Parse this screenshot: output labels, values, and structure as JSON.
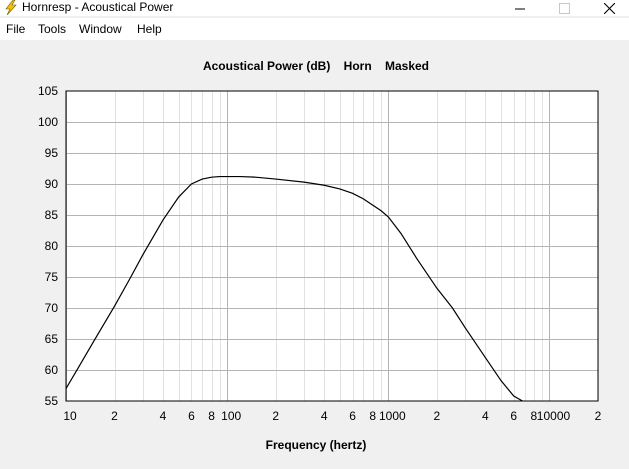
{
  "window": {
    "title": "Hornresp - Acoustical Power"
  },
  "menu": {
    "file": "File",
    "tools": "Tools",
    "window": "Window",
    "help": "Help"
  },
  "icons": {
    "app": "lightning-bolt-icon",
    "minimize": "minimize-icon",
    "maximize": "maximize-icon",
    "close": "close-icon"
  },
  "colors": {
    "app_icon": "#f5c400",
    "curve": "#000000",
    "grid_major": "#b4b4b4",
    "grid_minor": "#e2e2e2",
    "plot_bg": "#ffffff"
  },
  "chart_data": {
    "type": "line",
    "title": "Acoustical Power (dB)    Horn    Masked",
    "xlabel": "Frequency (hertz)",
    "ylabel": "",
    "x_scale": "log",
    "xlim": [
      10,
      20000
    ],
    "ylim": [
      55,
      105
    ],
    "grid": true,
    "y_ticks": [
      105,
      100,
      95,
      90,
      85,
      80,
      75,
      70,
      65,
      60,
      55
    ],
    "x_tick_labels": [
      {
        "value": 10,
        "label": "10"
      },
      {
        "value": 20,
        "label": "2"
      },
      {
        "value": 40,
        "label": "4"
      },
      {
        "value": 60,
        "label": "6"
      },
      {
        "value": 80,
        "label": "8"
      },
      {
        "value": 100,
        "label": "100"
      },
      {
        "value": 200,
        "label": "2"
      },
      {
        "value": 400,
        "label": "4"
      },
      {
        "value": 600,
        "label": "6"
      },
      {
        "value": 800,
        "label": "8"
      },
      {
        "value": 1000,
        "label": "1000"
      },
      {
        "value": 2000,
        "label": "2"
      },
      {
        "value": 4000,
        "label": "4"
      },
      {
        "value": 6000,
        "label": "6"
      },
      {
        "value": 8000,
        "label": "8"
      },
      {
        "value": 10000,
        "label": "10000"
      },
      {
        "value": 20000,
        "label": "2"
      }
    ],
    "series": [
      {
        "x": [
          10,
          12,
          15,
          20,
          25,
          30,
          40,
          50,
          60,
          70,
          80,
          90,
          100,
          120,
          150,
          200,
          300,
          400,
          500,
          600,
          700,
          800,
          900,
          1000,
          1200,
          1500,
          2000,
          2500,
          3000,
          4000,
          5000,
          6000,
          6800
        ],
        "y": [
          57.0,
          60.5,
          64.8,
          70.3,
          74.8,
          78.6,
          84.2,
          87.9,
          90.0,
          90.8,
          91.1,
          91.2,
          91.2,
          91.2,
          91.1,
          90.8,
          90.3,
          89.8,
          89.2,
          88.5,
          87.6,
          86.6,
          85.7,
          84.7,
          82.0,
          78.0,
          73.2,
          70.0,
          66.8,
          62.0,
          58.3,
          55.8,
          55.0
        ]
      }
    ]
  }
}
